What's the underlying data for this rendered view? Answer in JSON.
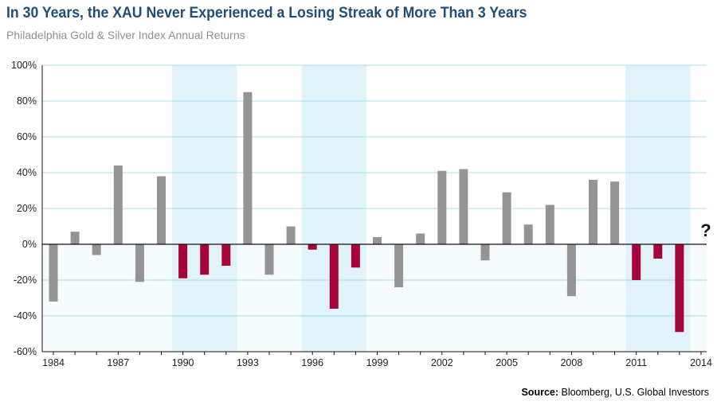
{
  "chart_data": {
    "type": "bar",
    "title": "In 30 Years, the XAU Never Experienced a Losing Streak of More Than 3 Years",
    "subtitle": "Philadelphia Gold & Silver Index Annual Returns",
    "xlabel": "",
    "ylabel": "",
    "ylim": [
      -60,
      100
    ],
    "y_ticks": [
      "100%",
      "80%",
      "60%",
      "40%",
      "20%",
      "0%",
      "-20%",
      "-40%",
      "-60%"
    ],
    "y_tick_values": [
      100,
      80,
      60,
      40,
      20,
      0,
      -20,
      -40,
      -60
    ],
    "x_tick_labels": [
      "1984",
      "1987",
      "1990",
      "1993",
      "1996",
      "1999",
      "2002",
      "2005",
      "2008",
      "2011",
      "2014"
    ],
    "x_tick_values": [
      1984,
      1987,
      1990,
      1993,
      1996,
      1999,
      2002,
      2005,
      2008,
      2011,
      2014
    ],
    "categories": [
      1984,
      1985,
      1986,
      1987,
      1988,
      1989,
      1990,
      1991,
      1992,
      1993,
      1994,
      1995,
      1996,
      1997,
      1998,
      1999,
      2000,
      2001,
      2002,
      2003,
      2004,
      2005,
      2006,
      2007,
      2008,
      2009,
      2010,
      2011,
      2012,
      2013
    ],
    "values": [
      -32,
      7,
      -6,
      44,
      -21,
      38,
      -19,
      -17,
      -12,
      85,
      -17,
      10,
      -3,
      -36,
      -13,
      4,
      -24,
      6,
      41,
      42,
      -9,
      29,
      11,
      22,
      -29,
      36,
      35,
      -20,
      -8,
      -49
    ],
    "losing_streaks": [
      [
        1990,
        1992
      ],
      [
        1996,
        1998
      ],
      [
        2011,
        2013
      ]
    ],
    "annotation": "?",
    "grid": true,
    "colors": {
      "bar": "#949494",
      "streak_bar": "#a4043a",
      "streak_band": "#e1f2f8",
      "gridline": "#a9dcef",
      "negative_region": "#f6fbfd",
      "axis": "#111111",
      "title": "#1f4e79"
    }
  },
  "source": {
    "label": "Source:",
    "text": " Bloomberg, U.S. Global Investors"
  }
}
